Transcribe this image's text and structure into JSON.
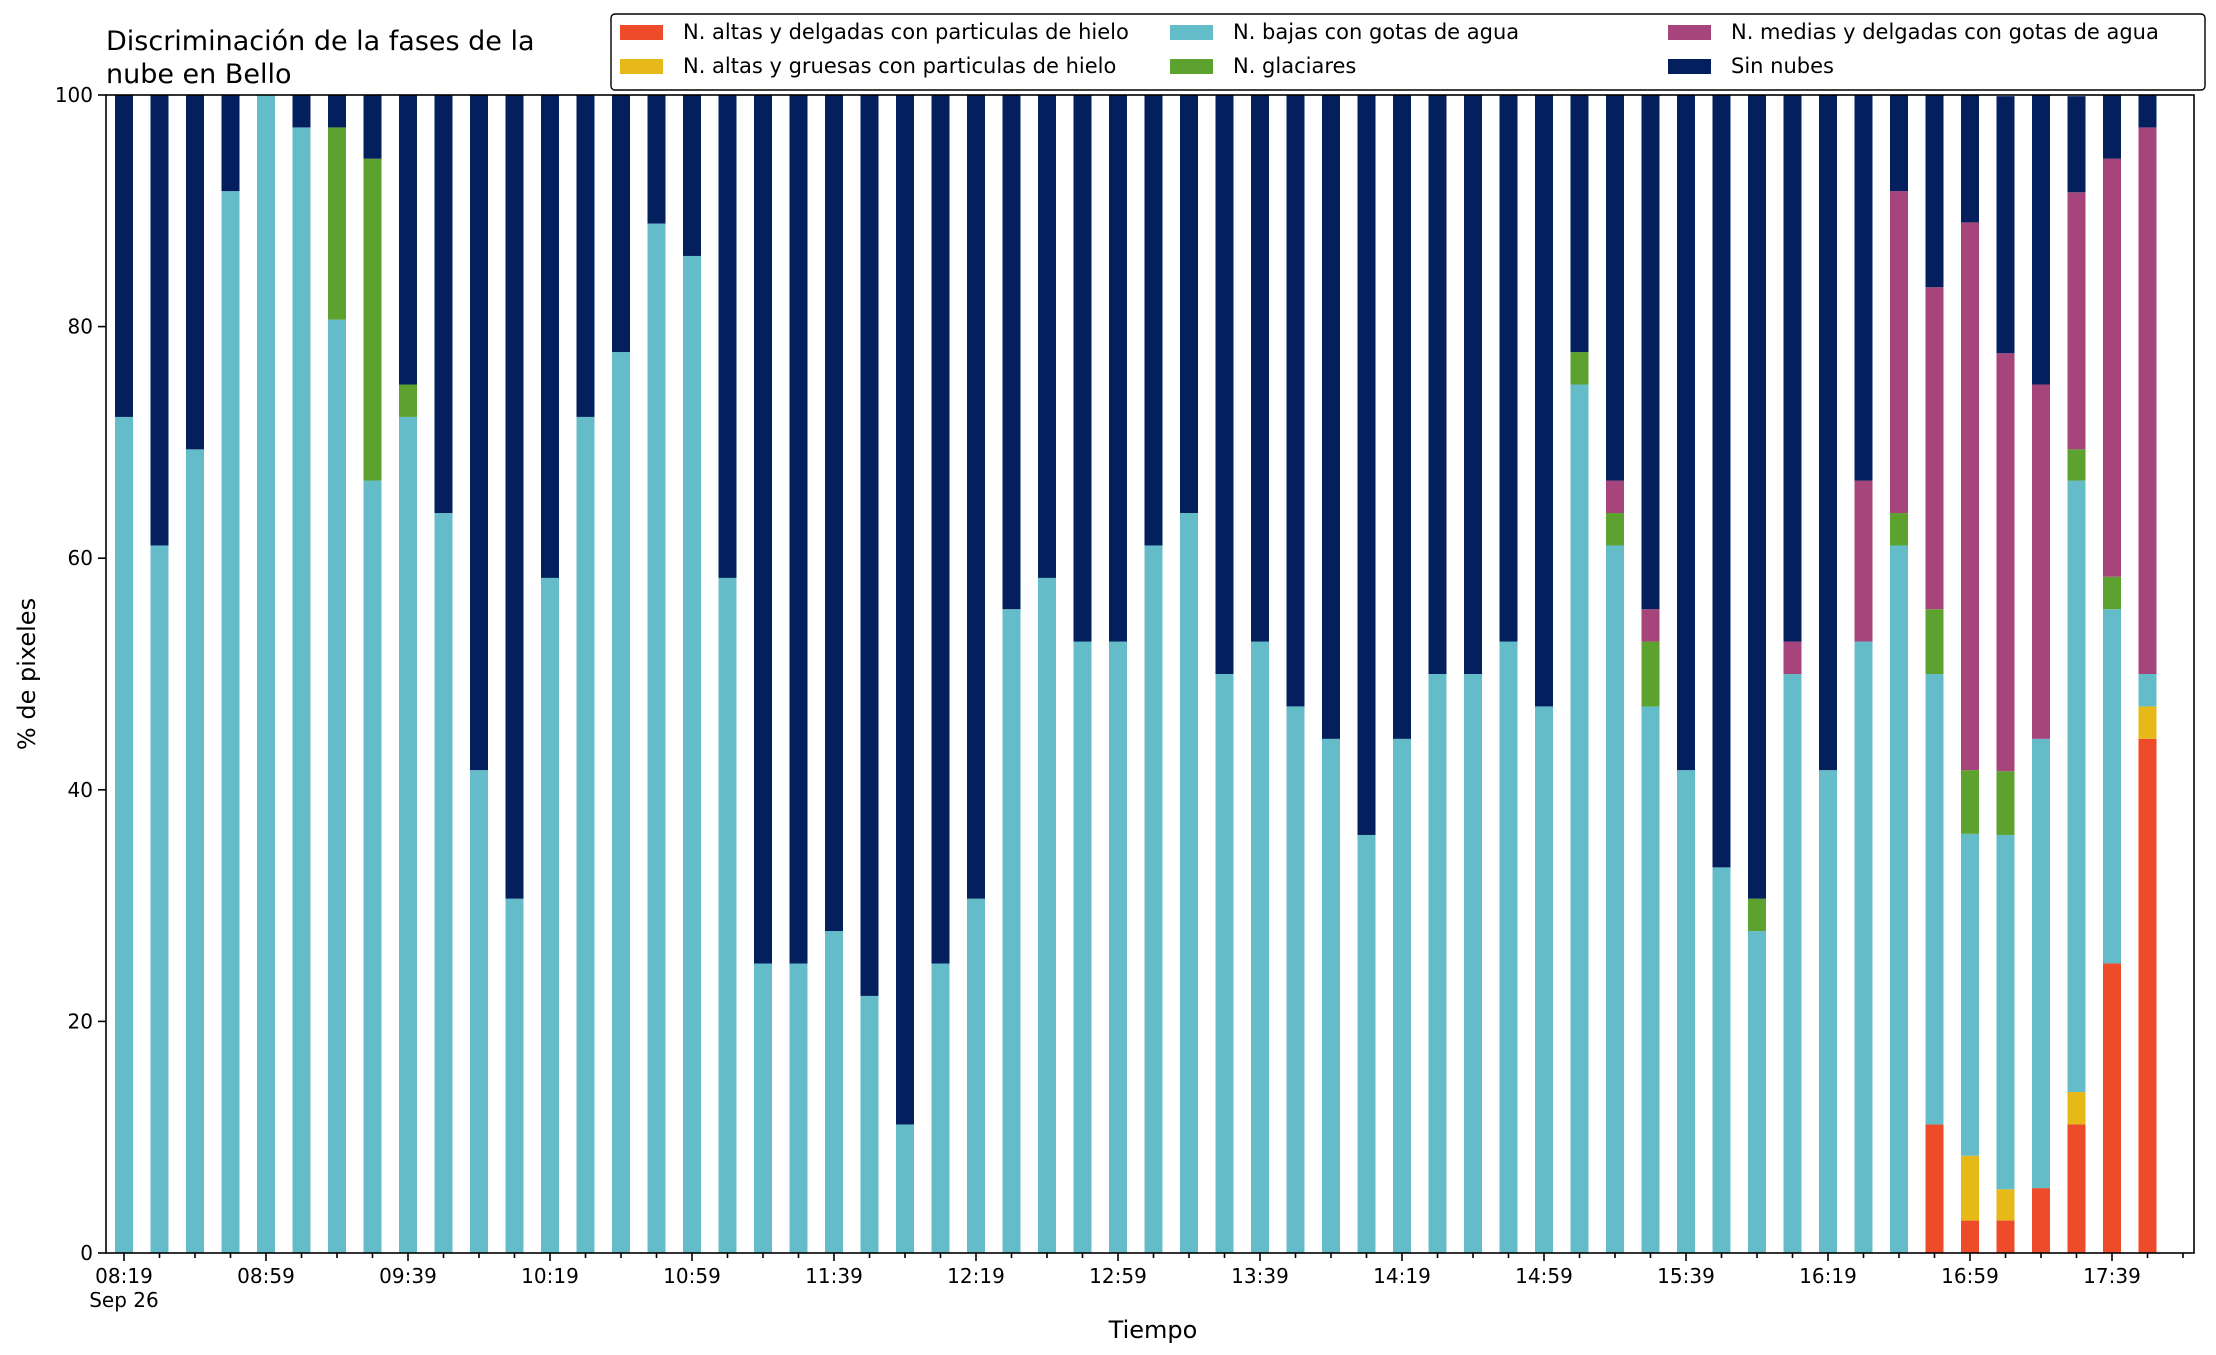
{
  "chart_data": {
    "type": "bar",
    "stacked": true,
    "title_lines": [
      "Discriminación de la fases de la",
      "nube en Bello"
    ],
    "xlabel": "Tiempo",
    "ylabel": "% de pixeles",
    "ylim": [
      0,
      100
    ],
    "yticks": [
      "0",
      "20",
      "40",
      "60",
      "80",
      "100"
    ],
    "grid": false,
    "legend_position": "top",
    "x_tick_labels": [
      {
        "index": 0,
        "label": "08:19",
        "sub": "Sep 26"
      },
      {
        "index": 4,
        "label": "08:59"
      },
      {
        "index": 8,
        "label": "09:39"
      },
      {
        "index": 12,
        "label": "10:19"
      },
      {
        "index": 16,
        "label": "10:59"
      },
      {
        "index": 20,
        "label": "11:39"
      },
      {
        "index": 24,
        "label": "12:19"
      },
      {
        "index": 28,
        "label": "12:59"
      },
      {
        "index": 32,
        "label": "13:39"
      },
      {
        "index": 36,
        "label": "14:19"
      },
      {
        "index": 40,
        "label": "14:59"
      },
      {
        "index": 44,
        "label": "15:39"
      },
      {
        "index": 48,
        "label": "16:19"
      },
      {
        "index": 52,
        "label": "16:59"
      },
      {
        "index": 56,
        "label": "17:39"
      }
    ],
    "x_count": 58,
    "series": [
      {
        "name": "N. altas y delgadas con particulas de hielo",
        "color": "#ee4b2b",
        "values": [
          0,
          0,
          0,
          0,
          0,
          0,
          0,
          0,
          0,
          0,
          0,
          0,
          0,
          0,
          0,
          0,
          0,
          0,
          0,
          0,
          0,
          0,
          0,
          0,
          0,
          0,
          0,
          0,
          0,
          0,
          0,
          0,
          0,
          0,
          0,
          0,
          0,
          0,
          0,
          0,
          0,
          0,
          0,
          0,
          0,
          0,
          0,
          0,
          0,
          0,
          0,
          11.1,
          2.8,
          2.8,
          5.6,
          11.1,
          25,
          44.4
        ]
      },
      {
        "name": "N. altas y gruesas con particulas de hielo",
        "color": "#e6b818",
        "values": [
          0,
          0,
          0,
          0,
          0,
          0,
          0,
          0,
          0,
          0,
          0,
          0,
          0,
          0,
          0,
          0,
          0,
          0,
          0,
          0,
          0,
          0,
          0,
          0,
          0,
          0,
          0,
          0,
          0,
          0,
          0,
          0,
          0,
          0,
          0,
          0,
          0,
          0,
          0,
          0,
          0,
          0,
          0,
          0,
          0,
          0,
          0,
          0,
          0,
          0,
          0,
          0,
          5.6,
          2.7,
          0,
          2.8,
          0,
          2.8
        ]
      },
      {
        "name": "N. bajas con gotas de agua",
        "color": "#65bcc9",
        "values": [
          72.2,
          61.1,
          69.4,
          91.7,
          100,
          97.2,
          80.6,
          66.7,
          72.2,
          63.9,
          41.7,
          30.6,
          58.3,
          72.2,
          77.8,
          88.9,
          86.1,
          58.3,
          25,
          25,
          27.8,
          22.2,
          11.1,
          25,
          30.6,
          55.6,
          58.3,
          52.8,
          52.8,
          61.1,
          63.9,
          50,
          52.8,
          47.2,
          44.4,
          36.1,
          44.4,
          50,
          50,
          52.8,
          47.2,
          75,
          61.1,
          47.2,
          41.7,
          33.3,
          27.8,
          50,
          41.7,
          52.8,
          61.1,
          38.9,
          27.8,
          30.6,
          38.8,
          52.8,
          30.6,
          2.8
        ]
      },
      {
        "name": "N. glaciares",
        "color": "#5da22f",
        "values": [
          0,
          0,
          0,
          0,
          0,
          0,
          16.6,
          27.8,
          2.8,
          0,
          0,
          0,
          0,
          0,
          0,
          0,
          0,
          0,
          0,
          0,
          0,
          0,
          0,
          0,
          0,
          0,
          0,
          0,
          0,
          0,
          0,
          0,
          0,
          0,
          0,
          0,
          0,
          0,
          0,
          0,
          0,
          2.8,
          2.8,
          5.6,
          0,
          0,
          2.8,
          0,
          0,
          0,
          2.8,
          5.6,
          5.5,
          5.5,
          0,
          2.7,
          2.8,
          0
        ]
      },
      {
        "name": "N. medias y delgadas con gotas de agua",
        "color": "#a5457b",
        "values": [
          0,
          0,
          0,
          0,
          0,
          0,
          0,
          0,
          0,
          0,
          0,
          0,
          0,
          0,
          0,
          0,
          0,
          0,
          0,
          0,
          0,
          0,
          0,
          0,
          0,
          0,
          0,
          0,
          0,
          0,
          0,
          0,
          0,
          0,
          0,
          0,
          0,
          0,
          0,
          0,
          0,
          0,
          2.8,
          2.8,
          0,
          0,
          0,
          2.8,
          0,
          13.9,
          27.8,
          27.8,
          47.3,
          36.1,
          30.6,
          22.2,
          36.1,
          47.2
        ]
      },
      {
        "name": "Sin nubes",
        "color": "#031f5e",
        "values": [
          27.8,
          38.9,
          30.6,
          8.3,
          0,
          2.8,
          2.8,
          5.5,
          25,
          36.1,
          58.3,
          69.4,
          41.7,
          27.8,
          22.2,
          11.1,
          13.9,
          41.7,
          75,
          75,
          72.2,
          77.8,
          88.9,
          75,
          69.4,
          44.4,
          41.7,
          47.2,
          47.2,
          38.9,
          36.1,
          50,
          47.2,
          52.8,
          55.6,
          63.9,
          55.6,
          50,
          50,
          47.2,
          52.8,
          22.2,
          33.3,
          44.4,
          58.3,
          66.7,
          69.4,
          47.2,
          58.3,
          33.3,
          8.3,
          16.6,
          11.0,
          22.2,
          25,
          8.3,
          5.5,
          2.8
        ]
      }
    ]
  }
}
